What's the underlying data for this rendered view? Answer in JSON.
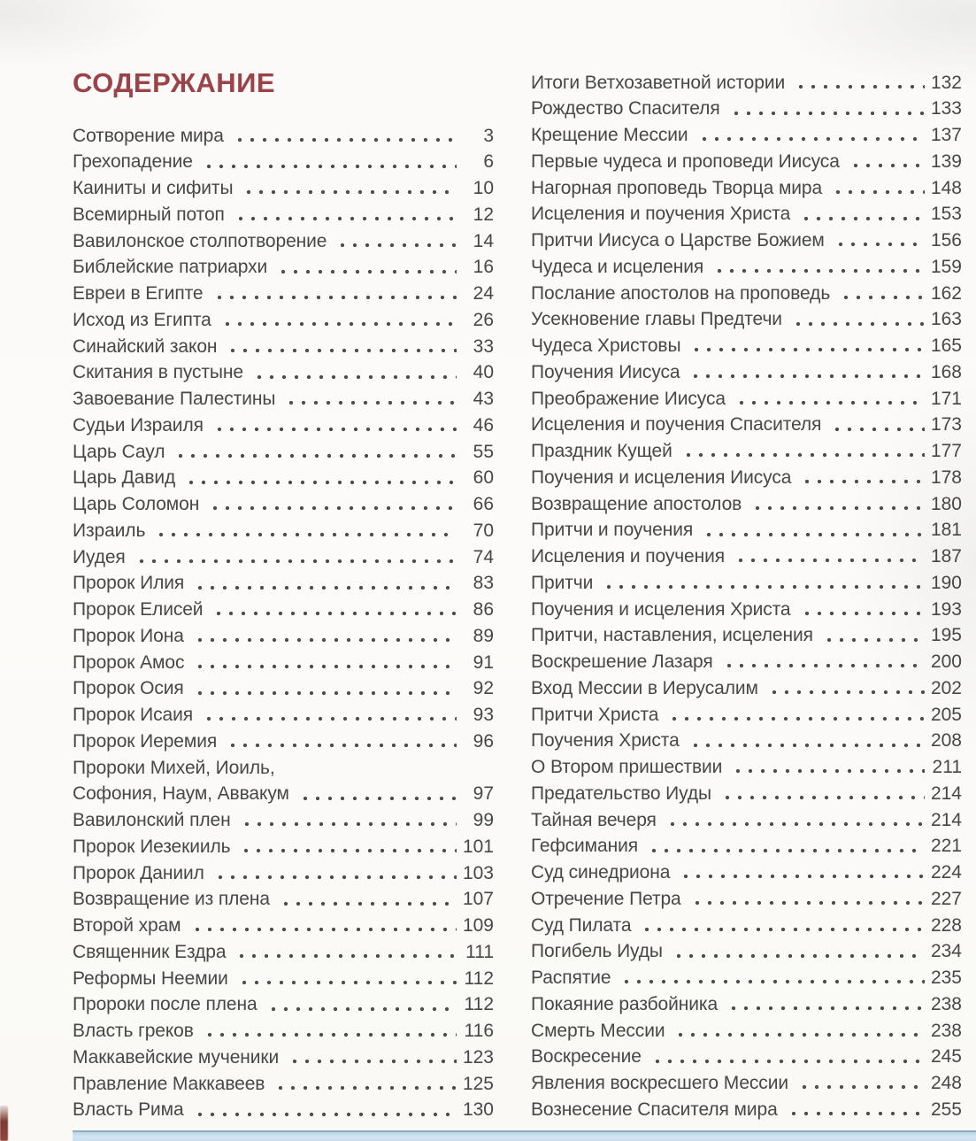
{
  "page": {
    "title": "СОДЕРЖАНИЕ",
    "colors": {
      "title": "#9a4449",
      "body_text": "#474747",
      "accent_bar_top": "#8fadc2",
      "accent_bar_fill": "#cbdfee"
    }
  },
  "toc": {
    "left_column": [
      {
        "label": "Сотворение мира",
        "page": "3"
      },
      {
        "label": "Грехопадение",
        "page": "6"
      },
      {
        "label": "Каиниты и сифиты",
        "page": "10"
      },
      {
        "label": "Всемирный потоп",
        "page": "12"
      },
      {
        "label": "Вавилонское столпотворение",
        "page": "14"
      },
      {
        "label": "Библейские патриархи",
        "page": "16"
      },
      {
        "label": "Евреи в Египте",
        "page": "24"
      },
      {
        "label": "Исход из Египта",
        "page": "26"
      },
      {
        "label": "Синайский закон",
        "page": "33"
      },
      {
        "label": "Скитания в пустыне",
        "page": "40"
      },
      {
        "label": "Завоевание Палестины",
        "page": "43"
      },
      {
        "label": "Судьи Израиля",
        "page": "46"
      },
      {
        "label": "Царь Саул",
        "page": "55"
      },
      {
        "label": "Царь Давид",
        "page": "60"
      },
      {
        "label": "Царь Соломон",
        "page": "66"
      },
      {
        "label": "Израиль",
        "page": "70"
      },
      {
        "label": "Иудея",
        "page": "74"
      },
      {
        "label": "Пророк Илия",
        "page": "83"
      },
      {
        "label": "Пророк Елисей",
        "page": "86"
      },
      {
        "label": "Пророк Иона",
        "page": "89"
      },
      {
        "label": "Пророк Амос",
        "page": "91"
      },
      {
        "label": "Пророк Осия",
        "page": "92"
      },
      {
        "label": "Пророк Исаия",
        "page": "93"
      },
      {
        "label": "Пророк Иеремия",
        "page": "96"
      },
      {
        "label": "Пророки Михей, Иоиль,",
        "page": ""
      },
      {
        "label": "Софония, Наум, Аввакум",
        "page": "97"
      },
      {
        "label": "Вавилонский плен",
        "page": "99"
      },
      {
        "label": "Пророк Иезекииль",
        "page": "101"
      },
      {
        "label": "Пророк Даниил",
        "page": "103"
      },
      {
        "label": "Возвращение из плена",
        "page": "107"
      },
      {
        "label": "Второй храм",
        "page": "109"
      },
      {
        "label": "Священник Ездра",
        "page": "111"
      },
      {
        "label": "Реформы Неемии",
        "page": "112"
      },
      {
        "label": "Пророки после плена",
        "page": "112"
      },
      {
        "label": "Власть греков",
        "page": "116"
      },
      {
        "label": "Маккавейские мученики",
        "page": "123"
      },
      {
        "label": "Правление Маккавеев",
        "page": "125"
      },
      {
        "label": "Власть Рима",
        "page": "130"
      }
    ],
    "right_column": [
      {
        "label": "Итоги Ветхозаветной истории",
        "page": "132"
      },
      {
        "label": "Рождество Спасителя",
        "page": "133"
      },
      {
        "label": "Крещение Мессии",
        "page": "137"
      },
      {
        "label": "Первые чудеса и проповеди Иисуса",
        "page": "139"
      },
      {
        "label": "Нагорная проповедь Творца мира",
        "page": "148"
      },
      {
        "label": "Исцеления и поучения Христа",
        "page": "153"
      },
      {
        "label": "Притчи Иисуса о Царстве Божием",
        "page": "156"
      },
      {
        "label": "Чудеса и исцеления",
        "page": "159"
      },
      {
        "label": "Послание апостолов на проповедь",
        "page": "162"
      },
      {
        "label": "Усекновение главы Предтечи",
        "page": "163"
      },
      {
        "label": "Чудеса Христовы",
        "page": "165"
      },
      {
        "label": "Поучения Иисуса",
        "page": "168"
      },
      {
        "label": "Преображение Иисуса",
        "page": "171"
      },
      {
        "label": "Исцеления и поучения Спасителя",
        "page": "173"
      },
      {
        "label": "Праздник Кущей",
        "page": "177"
      },
      {
        "label": "Поучения и исцеления Иисуса",
        "page": "178"
      },
      {
        "label": "Возвращение апостолов",
        "page": "180"
      },
      {
        "label": "Притчи и поучения",
        "page": "181"
      },
      {
        "label": "Исцеления и поучения",
        "page": "187"
      },
      {
        "label": "Притчи",
        "page": "190"
      },
      {
        "label": "Поучения и исцеления Христа",
        "page": "193"
      },
      {
        "label": "Притчи, наставления, исцеления",
        "page": "195"
      },
      {
        "label": "Воскрешение Лазаря",
        "page": "200"
      },
      {
        "label": "Вход Мессии в Иерусалим",
        "page": "202"
      },
      {
        "label": "Притчи Христа",
        "page": "205"
      },
      {
        "label": "Поучения Христа",
        "page": "208"
      },
      {
        "label": "О Втором пришествии",
        "page": "211"
      },
      {
        "label": "Предательство Иуды",
        "page": "214"
      },
      {
        "label": "Тайная вечеря",
        "page": "214"
      },
      {
        "label": "Гефсимания",
        "page": "221"
      },
      {
        "label": "Суд синедриона",
        "page": "224"
      },
      {
        "label": "Отречение Петра",
        "page": "227"
      },
      {
        "label": "Суд Пилата",
        "page": "228"
      },
      {
        "label": "Погибель Иуды",
        "page": "234"
      },
      {
        "label": "Распятие",
        "page": "235"
      },
      {
        "label": "Покаяние разбойника",
        "page": "238"
      },
      {
        "label": "Смерть Мессии",
        "page": "238"
      },
      {
        "label": "Воскресение",
        "page": "245"
      },
      {
        "label": "Явления воскресшего Мессии",
        "page": "248"
      },
      {
        "label": "Вознесение Спасителя мира",
        "page": "255"
      }
    ]
  }
}
